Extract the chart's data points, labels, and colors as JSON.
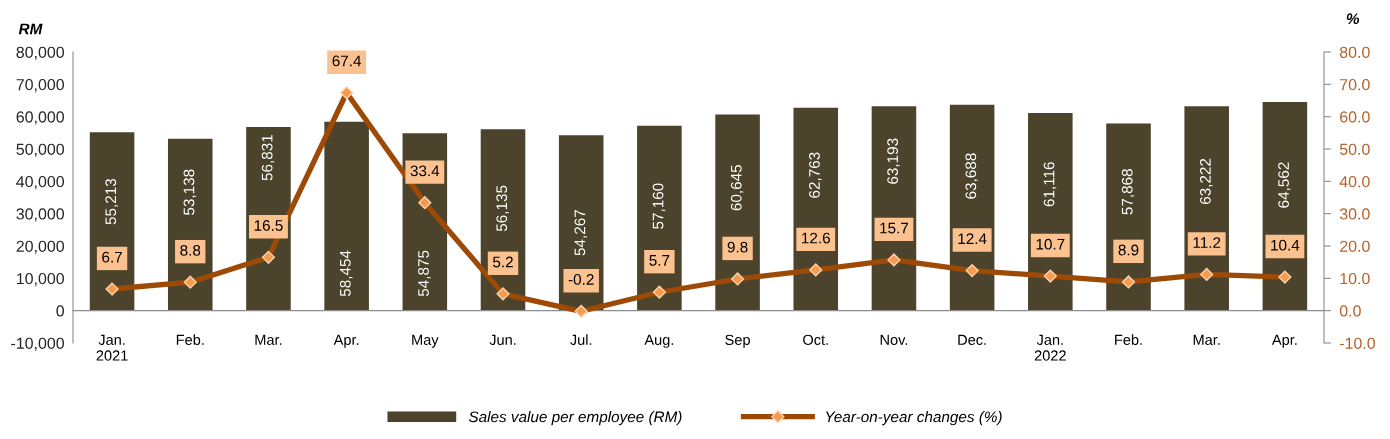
{
  "chart_data": {
    "type": "bar",
    "ylabel": "RM",
    "y2label": "%",
    "categories": [
      "Jan.\n2021",
      "Feb.",
      "Mar.",
      "Apr.",
      "May",
      "Jun.",
      "Jul.",
      "Aug.",
      "Sep",
      "Oct.",
      "Nov.",
      "Dec.",
      "Jan.\n2022",
      "Feb.",
      "Mar.",
      "Apr."
    ],
    "series": [
      {
        "name": "Sales value per employee (RM)",
        "color": "#4b432b",
        "values": [
          55213,
          53138,
          56831,
          58454,
          54875,
          56135,
          54267,
          57160,
          60645,
          62763,
          63193,
          63688,
          61116,
          57868,
          63222,
          64562
        ],
        "value_labels": [
          "55,213",
          "53,138",
          "56,831",
          "58,454",
          "54,875",
          "56,135",
          "54,267",
          "57,160",
          "60,645",
          "62,763",
          "63,193",
          "63,688",
          "61,116",
          "57,868",
          "63,222",
          "64,562"
        ]
      },
      {
        "name": "Year-on-year changes (%)",
        "type": "line",
        "axis": "y2",
        "color": "#9c4a06",
        "marker": "diamond",
        "line_style": "solid",
        "values": [
          6.7,
          8.8,
          16.5,
          67.4,
          33.4,
          5.2,
          -0.2,
          5.7,
          9.8,
          12.6,
          15.7,
          12.4,
          10.7,
          8.9,
          11.2,
          10.4
        ],
        "value_labels": [
          "6.7",
          "8.8",
          "16.5",
          "67.4",
          "33.4",
          "5.2",
          "-0.2",
          "5.7",
          "9.8",
          "12.6",
          "15.7",
          "12.4",
          "10.7",
          "8.9",
          "11.2",
          "10.4"
        ]
      }
    ],
    "ylim": [
      -10000,
      80000
    ],
    "yticks": [
      {
        "value": -10000,
        "label": "-10,000"
      },
      0,
      {
        "value": 10000,
        "label": "10,000"
      },
      {
        "value": 20000,
        "label": "20,000"
      },
      {
        "value": 30000,
        "label": "30,000"
      },
      {
        "value": 40000,
        "label": "40,000"
      },
      {
        "value": 50000,
        "label": "50,000"
      },
      {
        "value": 60000,
        "label": "60,000"
      },
      {
        "value": 70000,
        "label": "70,000"
      },
      {
        "value": 80000,
        "label": "80,000"
      }
    ],
    "y2lim": [
      -10,
      80
    ],
    "y2ticks": [
      {
        "value": -10,
        "label": "-10.0"
      },
      {
        "value": 0,
        "label": "0.0"
      },
      {
        "value": 10,
        "label": "10.0"
      },
      {
        "value": 20,
        "label": "20.0"
      },
      {
        "value": 30,
        "label": "30.0"
      },
      {
        "value": 40,
        "label": "40.0"
      },
      {
        "value": 50,
        "label": "50.0"
      },
      {
        "value": 60,
        "label": "60.0"
      },
      {
        "value": 70,
        "label": "70.0"
      },
      {
        "value": 80,
        "label": "80.0"
      }
    ],
    "legend": "bottom"
  }
}
